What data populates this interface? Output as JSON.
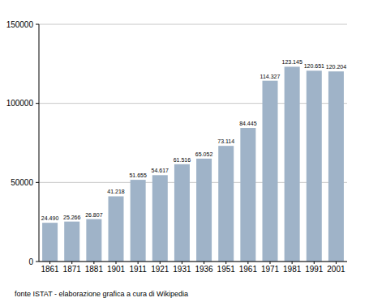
{
  "chart_data": {
    "type": "bar",
    "categories": [
      "1861",
      "1871",
      "1881",
      "1901",
      "1911",
      "1921",
      "1931",
      "1936",
      "1951",
      "1961",
      "1971",
      "1981",
      "1991",
      "2001"
    ],
    "values": [
      24490,
      25266,
      26807,
      41218,
      51655,
      54617,
      61516,
      65052,
      73114,
      84445,
      114327,
      123145,
      120651,
      120204
    ],
    "value_labels": [
      "24.490",
      "25.266",
      "26.807",
      "41.218",
      "51.655",
      "54.617",
      "61.516",
      "65.052",
      "73.114",
      "84.445",
      "114.327",
      "123.145",
      "120.651",
      "120.204"
    ],
    "data_labels": true,
    "color": "#9fb3c8",
    "ylim": [
      0,
      150000
    ],
    "yticks": [
      0,
      50000,
      100000,
      150000
    ],
    "grid": true,
    "annotations": [
      "fonte ISTAT - elaborazione grafica a cura di Wikipedia"
    ]
  }
}
